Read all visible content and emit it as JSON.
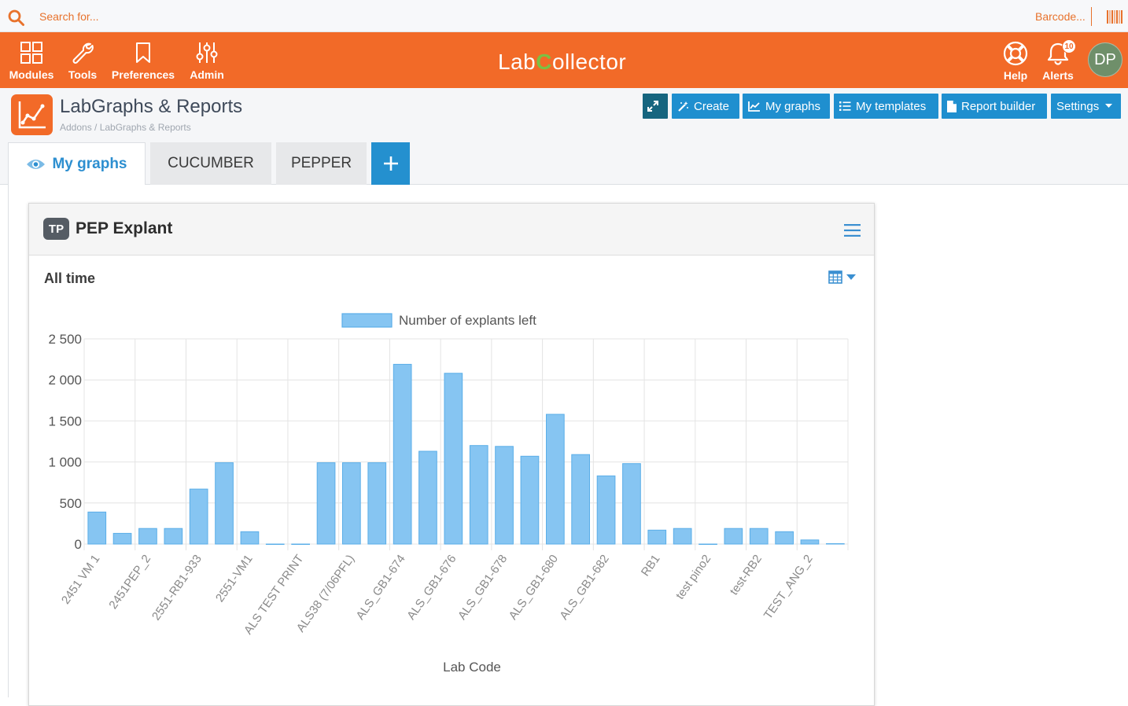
{
  "topbar": {
    "search_placeholder": "Search for...",
    "barcode_placeholder": "Barcode..."
  },
  "nav": {
    "left": [
      {
        "label": "Modules",
        "icon": "modules-grid-icon"
      },
      {
        "label": "Tools",
        "icon": "wrench-icon"
      },
      {
        "label": "Preferences",
        "icon": "bookmark-icon"
      },
      {
        "label": "Admin",
        "icon": "sliders-icon"
      }
    ],
    "logo_prefix": "Lab",
    "logo_c": "C",
    "logo_suffix": "ollector",
    "help_label": "Help",
    "alerts_label": "Alerts",
    "alerts_count": "10",
    "avatar_initials": "DP"
  },
  "header": {
    "title": "LabGraphs & Reports",
    "breadcrumb": "Addons / LabGraphs & Reports"
  },
  "toolbar": {
    "create": "Create",
    "my_graphs": "My graphs",
    "my_templates": "My templates",
    "report_builder": "Report builder",
    "settings": "Settings"
  },
  "tabs": [
    {
      "label": "My graphs",
      "active": true
    },
    {
      "label": "CUCUMBER",
      "active": false
    },
    {
      "label": "PEPPER",
      "active": false
    }
  ],
  "panel": {
    "badge": "TP",
    "title": "PEP Explant",
    "period": "All time"
  },
  "colors": {
    "brand_orange": "#f26a28",
    "button_blue": "#1f8fcf",
    "bar_fill": "#86c5f2",
    "bar_stroke": "#5aaee8"
  },
  "chart_data": {
    "type": "bar",
    "series": [
      {
        "name": "Number of explants left",
        "values": [
          390,
          130,
          190,
          190,
          670,
          990,
          150,
          0,
          0,
          990,
          990,
          990,
          2190,
          1130,
          2080,
          1200,
          1190,
          1070,
          1580,
          1090,
          830,
          980,
          170,
          190,
          0,
          190,
          190,
          150,
          50,
          5
        ]
      }
    ],
    "categories": [
      "2451 VM 1",
      "",
      "2451PEP_2",
      "",
      "2551-RB1-933",
      "",
      "2551-VM1",
      "",
      "ALS TEST PRINT",
      "",
      "ALS38 (7/06PFL)",
      "",
      "ALS_GB1-674",
      "",
      "ALS_GB1-676",
      "",
      "ALS_GB1-678",
      "",
      "ALS_GB1-680",
      "",
      "ALS_GB1-682",
      "",
      "RB1",
      "",
      "test pino2",
      "",
      "test-RB2",
      "",
      "TEST_ANG_2",
      ""
    ],
    "xlabel": "Lab Code",
    "ylabel": "",
    "ylim": [
      0,
      2500
    ],
    "yticks": [
      "0",
      "500",
      "1 000",
      "1 500",
      "2 000",
      "2 500"
    ],
    "grid": true,
    "legend": "top-center"
  }
}
